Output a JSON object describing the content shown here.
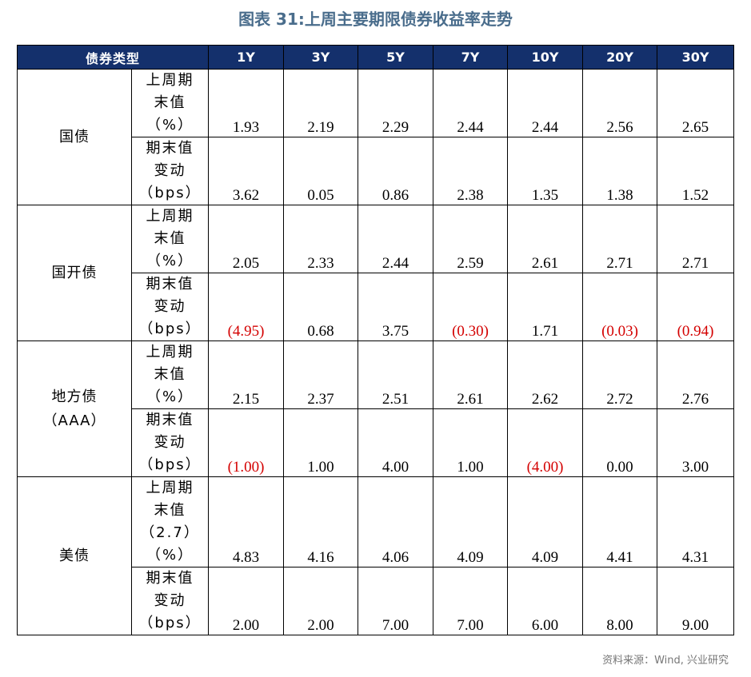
{
  "title": "图表 31:上周主要期限债券收益率走势",
  "header": {
    "type_label": "债券类型",
    "tenors": [
      "1Y",
      "3Y",
      "5Y",
      "7Y",
      "10Y",
      "20Y",
      "30Y"
    ]
  },
  "groups": [
    {
      "name": "国债",
      "rows": [
        {
          "metric": "上周期\n末值\n（%）",
          "values": [
            "1.93",
            "2.19",
            "2.29",
            "2.44",
            "2.44",
            "2.56",
            "2.65"
          ]
        },
        {
          "metric": "期末值\n变动\n（bps）",
          "values": [
            "3.62",
            "0.05",
            "0.86",
            "2.38",
            "1.35",
            "1.38",
            "1.52"
          ]
        }
      ]
    },
    {
      "name": "国开债",
      "rows": [
        {
          "metric": "上周期\n末值\n（%）",
          "values": [
            "2.05",
            "2.33",
            "2.44",
            "2.59",
            "2.61",
            "2.71",
            "2.71"
          ]
        },
        {
          "metric": "期末值\n变动\n（bps）",
          "values": [
            "(4.95)",
            "0.68",
            "3.75",
            "(0.30)",
            "1.71",
            "(0.03)",
            "(0.94)"
          ]
        }
      ]
    },
    {
      "name": "地方债\n（AAA）",
      "rows": [
        {
          "metric": "上周期\n末值\n（%）",
          "values": [
            "2.15",
            "2.37",
            "2.51",
            "2.61",
            "2.62",
            "2.72",
            "2.76"
          ]
        },
        {
          "metric": "期末值\n变动\n（bps）",
          "values": [
            "(1.00)",
            "1.00",
            "4.00",
            "1.00",
            "(4.00)",
            "0.00",
            "3.00"
          ]
        }
      ]
    },
    {
      "name": "美债",
      "rows": [
        {
          "metric": "上周期\n末值\n（2.7）\n（%）",
          "values": [
            "4.83",
            "4.16",
            "4.06",
            "4.09",
            "4.09",
            "4.41",
            "4.31"
          ]
        },
        {
          "metric": "期末值\n变动\n（bps）",
          "values": [
            "2.00",
            "2.00",
            "7.00",
            "7.00",
            "6.00",
            "8.00",
            "9.00"
          ]
        }
      ]
    }
  ],
  "colors": {
    "header_bg": "#14306c",
    "title": "#4a6d8c",
    "negative": "#d40000"
  },
  "source": "资料来源：Wind, 兴业研究"
}
